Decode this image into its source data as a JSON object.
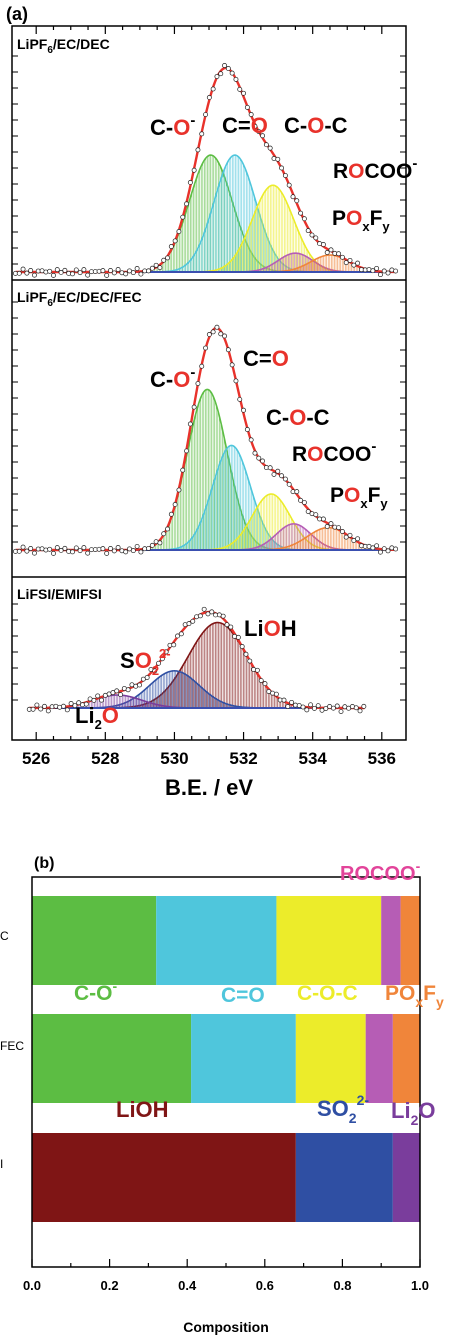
{
  "panel_a_label": "(a)",
  "panel_b_label": "(b)",
  "colors": {
    "data_fit": "#e8322b",
    "c_o_minus": "#5cbd43",
    "c_eq_o": "#4fc6dc",
    "c_o_c": "#ecec2a",
    "rocoo": "#b65db5",
    "poxfy": "#f0853a",
    "lioh": "#7f1515",
    "so2": "#2f4fa3",
    "li2o": "#7a3d9c",
    "baseline": "#3a4fb0",
    "oxygen_red": "#e8322b"
  },
  "chart_data": [
    {
      "type": "xps",
      "title": "LiPF6/EC/DEC",
      "x_range": [
        525.3,
        536.7
      ],
      "x_reversed": false,
      "x_ticks": [
        526,
        528,
        530,
        532,
        534,
        536
      ],
      "x_tick_labels": [
        "526",
        "528",
        "530",
        "532",
        "534",
        "536"
      ],
      "series": [
        {
          "name": "C-O-",
          "center": 531.05,
          "sigma": 0.62,
          "height": 0.62,
          "color_key": "c_o_minus"
        },
        {
          "name": "C=O",
          "center": 531.75,
          "sigma": 0.6,
          "height": 0.62,
          "color_key": "c_eq_o"
        },
        {
          "name": "C-O-C",
          "center": 532.85,
          "sigma": 0.6,
          "height": 0.46,
          "color_key": "c_o_c"
        },
        {
          "name": "ROCOO-",
          "center": 533.5,
          "sigma": 0.5,
          "height": 0.1,
          "color_key": "rocoo"
        },
        {
          "name": "POxFy",
          "center": 534.5,
          "sigma": 0.55,
          "height": 0.09,
          "color_key": "poxfy"
        }
      ],
      "data_range": [
        525.4,
        536.4
      ],
      "annotations": [
        "C-O-",
        "C=O",
        "C-O-C",
        "ROCOO-",
        "POxFy"
      ]
    },
    {
      "type": "xps",
      "title": "LiPF6/EC/DEC/FEC",
      "x_range": [
        525.3,
        536.7
      ],
      "x_ticks": [
        526,
        528,
        530,
        532,
        534,
        536
      ],
      "series": [
        {
          "name": "C-O-",
          "center": 530.95,
          "sigma": 0.58,
          "height": 0.86,
          "color_key": "c_o_minus"
        },
        {
          "name": "C=O",
          "center": 531.65,
          "sigma": 0.55,
          "height": 0.56,
          "color_key": "c_eq_o"
        },
        {
          "name": "C-O-C",
          "center": 532.8,
          "sigma": 0.55,
          "height": 0.3,
          "color_key": "c_o_c"
        },
        {
          "name": "ROCOO-",
          "center": 533.45,
          "sigma": 0.5,
          "height": 0.14,
          "color_key": "rocoo"
        },
        {
          "name": "POxFy",
          "center": 534.45,
          "sigma": 0.6,
          "height": 0.12,
          "color_key": "poxfy"
        }
      ],
      "data_range": [
        525.4,
        536.4
      ],
      "annotations": [
        "C=O",
        "C-O-",
        "C-O-C",
        "ROCOO-",
        "POxFy"
      ]
    },
    {
      "type": "xps",
      "title": "LiFSI/EMIFSI",
      "x_range": [
        525.3,
        536.7
      ],
      "x_ticks": [
        526,
        528,
        530,
        532,
        534,
        536
      ],
      "series": [
        {
          "name": "LiOH",
          "center": 531.25,
          "sigma": 0.85,
          "height": 0.92,
          "color_key": "lioh"
        },
        {
          "name": "SO2 2-",
          "center": 530.0,
          "sigma": 0.72,
          "height": 0.4,
          "color_key": "so2"
        },
        {
          "name": "Li2O",
          "center": 528.35,
          "sigma": 0.7,
          "height": 0.14,
          "color_key": "li2o"
        }
      ],
      "data_range": [
        525.8,
        535.5
      ],
      "annotations": [
        "LiOH",
        "SO2 2-",
        "Li2O"
      ]
    },
    {
      "type": "bar",
      "orientation": "horizontal",
      "stacked": true,
      "xlabel": "Composition",
      "xlim": [
        0,
        1
      ],
      "x_ticks": [
        0.0,
        0.2,
        0.4,
        0.6,
        0.8,
        1.0
      ],
      "x_tick_labels": [
        "0.0",
        "0.2",
        "0.4",
        "0.6",
        "0.8",
        "1.0"
      ],
      "rows": [
        {
          "label_fragment": "C",
          "segments": [
            {
              "name": "C-O-",
              "value": 0.32,
              "color_key": "c_o_minus"
            },
            {
              "name": "C=O",
              "value": 0.31,
              "color_key": "c_eq_o"
            },
            {
              "name": "C-O-C",
              "value": 0.27,
              "color_key": "c_o_c"
            },
            {
              "name": "ROCOO-",
              "value": 0.05,
              "color_key": "rocoo"
            },
            {
              "name": "POxFy",
              "value": 0.05,
              "color_key": "poxfy"
            }
          ]
        },
        {
          "label_fragment": "FEC",
          "segments": [
            {
              "name": "C-O-",
              "value": 0.41,
              "color_key": "c_o_minus"
            },
            {
              "name": "C=O",
              "value": 0.27,
              "color_key": "c_eq_o"
            },
            {
              "name": "C-O-C",
              "value": 0.18,
              "color_key": "c_o_c"
            },
            {
              "name": "ROCOO-",
              "value": 0.07,
              "color_key": "rocoo"
            },
            {
              "name": "POxFy",
              "value": 0.07,
              "color_key": "poxfy"
            }
          ]
        },
        {
          "label_fragment": "I",
          "segments": [
            {
              "name": "LiOH",
              "value": 0.68,
              "color_key": "lioh"
            },
            {
              "name": "SO2 2-",
              "value": 0.25,
              "color_key": "so2"
            },
            {
              "name": "Li2O",
              "value": 0.07,
              "color_key": "li2o"
            }
          ]
        }
      ],
      "legend_labels": [
        "ROCOO-",
        "C-O-",
        "C=O",
        "C-O-C",
        "POxFy",
        "LiOH",
        "SO2 2-",
        "Li2O"
      ]
    }
  ],
  "panel_a_xlabel": "B.E. / eV"
}
